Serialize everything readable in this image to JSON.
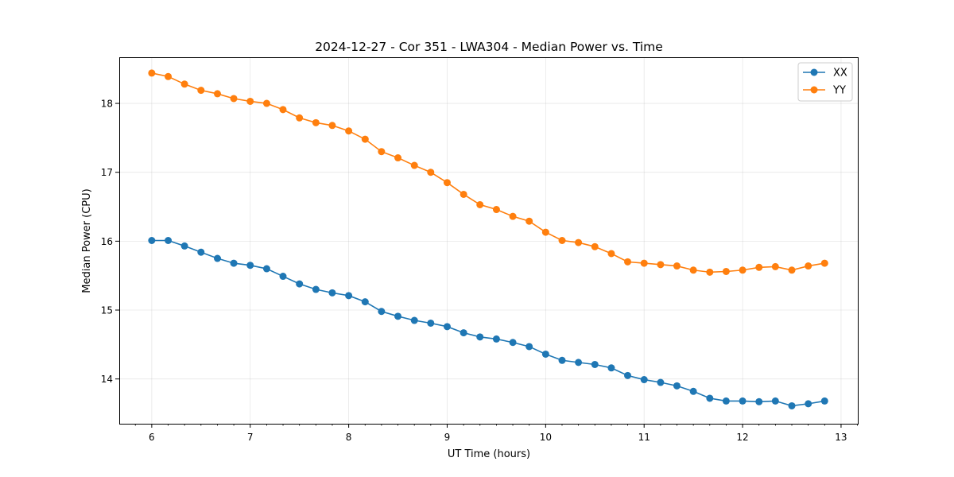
{
  "chart_data": {
    "type": "line",
    "title": "2024-12-27 - Cor 351 - LWA304 - Median Power vs. Time",
    "xlabel": "UT Time (hours)",
    "ylabel": "Median Power (CPU)",
    "xlim": [
      5.67,
      13.17
    ],
    "ylim": [
      13.35,
      18.67
    ],
    "xticks": [
      6,
      7,
      8,
      9,
      10,
      11,
      12,
      13
    ],
    "yticks": [
      14,
      15,
      16,
      17,
      18
    ],
    "grid": true,
    "legend_position": "top-right",
    "x": [
      6.0,
      6.167,
      6.333,
      6.5,
      6.667,
      6.833,
      7.0,
      7.167,
      7.333,
      7.5,
      7.667,
      7.833,
      8.0,
      8.167,
      8.333,
      8.5,
      8.667,
      8.833,
      9.0,
      9.167,
      9.333,
      9.5,
      9.667,
      9.833,
      10.0,
      10.167,
      10.333,
      10.5,
      10.667,
      10.833,
      11.0,
      11.167,
      11.333,
      11.5,
      11.667,
      11.833,
      12.0,
      12.167,
      12.333,
      12.5,
      12.667,
      12.833
    ],
    "series": [
      {
        "name": "XX",
        "color": "#1f77b4",
        "values": [
          16.01,
          16.01,
          15.93,
          15.84,
          15.75,
          15.68,
          15.65,
          15.6,
          15.49,
          15.38,
          15.3,
          15.25,
          15.21,
          15.12,
          14.98,
          14.91,
          14.85,
          14.81,
          14.76,
          14.67,
          14.61,
          14.58,
          14.53,
          14.47,
          14.36,
          14.27,
          14.24,
          14.21,
          14.16,
          14.05,
          13.99,
          13.95,
          13.9,
          13.82,
          13.72,
          13.68,
          13.68,
          13.67,
          13.68,
          13.61,
          13.64,
          13.68
        ]
      },
      {
        "name": "YY",
        "color": "#ff7f0e",
        "values": [
          18.44,
          18.39,
          18.28,
          18.19,
          18.14,
          18.07,
          18.03,
          18.0,
          17.91,
          17.79,
          17.72,
          17.68,
          17.6,
          17.48,
          17.3,
          17.21,
          17.1,
          17.0,
          16.85,
          16.68,
          16.53,
          16.46,
          16.36,
          16.29,
          16.13,
          16.01,
          15.98,
          15.92,
          15.82,
          15.7,
          15.68,
          15.66,
          15.64,
          15.58,
          15.55,
          15.56,
          15.58,
          15.62,
          15.63,
          15.58,
          15.64,
          15.68
        ]
      }
    ]
  }
}
